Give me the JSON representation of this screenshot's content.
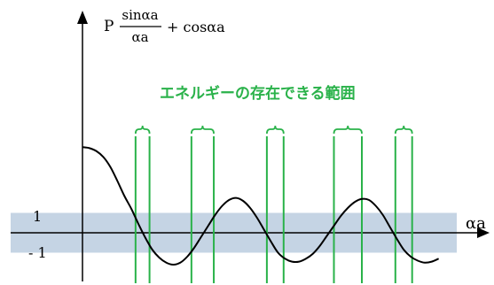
{
  "chart_data": {
    "type": "line",
    "ylabel_prefix": "P",
    "ylabel_numerator": "sinαa",
    "ylabel_denominator": "αa",
    "ylabel_suffix": "+ cosαa",
    "xlabel": "αa",
    "band_upper_label": "1",
    "band_lower_label": "- 1",
    "band_range": [
      -1,
      1
    ],
    "ylim": [
      -1.75,
      5.3
    ],
    "xlim": [
      0,
      13.7
    ],
    "annotation": "エネルギーの存在できる範囲",
    "allowed_bands": [
      [
        1.9,
        2.4
      ],
      [
        3.9,
        4.7
      ],
      [
        6.6,
        7.2
      ],
      [
        9.0,
        10.0
      ],
      [
        11.2,
        11.8
      ]
    ],
    "curve": [
      {
        "x": 0.0,
        "y": 4.3
      },
      {
        "x": 0.25,
        "y": 4.25
      },
      {
        "x": 0.5,
        "y": 4.1
      },
      {
        "x": 0.75,
        "y": 3.8
      },
      {
        "x": 1.0,
        "y": 3.3
      },
      {
        "x": 1.25,
        "y": 2.6
      },
      {
        "x": 1.5,
        "y": 1.85
      },
      {
        "x": 1.75,
        "y": 1.2
      },
      {
        "x": 2.0,
        "y": 0.45
      },
      {
        "x": 2.25,
        "y": -0.25
      },
      {
        "x": 2.5,
        "y": -0.85
      },
      {
        "x": 2.75,
        "y": -1.25
      },
      {
        "x": 3.0,
        "y": -1.5
      },
      {
        "x": 3.25,
        "y": -1.6
      },
      {
        "x": 3.5,
        "y": -1.5
      },
      {
        "x": 3.75,
        "y": -1.2
      },
      {
        "x": 4.0,
        "y": -0.75
      },
      {
        "x": 4.25,
        "y": -0.2
      },
      {
        "x": 4.5,
        "y": 0.35
      },
      {
        "x": 4.75,
        "y": 0.9
      },
      {
        "x": 5.0,
        "y": 1.35
      },
      {
        "x": 5.25,
        "y": 1.65
      },
      {
        "x": 5.5,
        "y": 1.75
      },
      {
        "x": 5.75,
        "y": 1.6
      },
      {
        "x": 6.0,
        "y": 1.25
      },
      {
        "x": 6.25,
        "y": 0.75
      },
      {
        "x": 6.5,
        "y": 0.15
      },
      {
        "x": 6.75,
        "y": -0.45
      },
      {
        "x": 7.0,
        "y": -1.0
      },
      {
        "x": 7.25,
        "y": -1.3
      },
      {
        "x": 7.5,
        "y": -1.45
      },
      {
        "x": 7.75,
        "y": -1.45
      },
      {
        "x": 8.0,
        "y": -1.3
      },
      {
        "x": 8.25,
        "y": -1.05
      },
      {
        "x": 8.5,
        "y": -0.65
      },
      {
        "x": 8.75,
        "y": -0.15
      },
      {
        "x": 9.0,
        "y": 0.35
      },
      {
        "x": 9.25,
        "y": 0.85
      },
      {
        "x": 9.5,
        "y": 1.25
      },
      {
        "x": 9.75,
        "y": 1.55
      },
      {
        "x": 10.0,
        "y": 1.7
      },
      {
        "x": 10.25,
        "y": 1.65
      },
      {
        "x": 10.5,
        "y": 1.35
      },
      {
        "x": 10.75,
        "y": 0.9
      },
      {
        "x": 11.0,
        "y": 0.3
      },
      {
        "x": 11.25,
        "y": -0.3
      },
      {
        "x": 11.5,
        "y": -0.85
      },
      {
        "x": 11.75,
        "y": -1.2
      },
      {
        "x": 12.0,
        "y": -1.4
      },
      {
        "x": 12.25,
        "y": -1.5
      },
      {
        "x": 12.5,
        "y": -1.45
      },
      {
        "x": 12.75,
        "y": -1.3
      }
    ],
    "colors": {
      "band_fill": "#c5d4e4",
      "curve": "#000000",
      "allowed_band_lines": "#2ab24a",
      "annotation_text": "#2ab24a",
      "axes": "#000000"
    }
  }
}
